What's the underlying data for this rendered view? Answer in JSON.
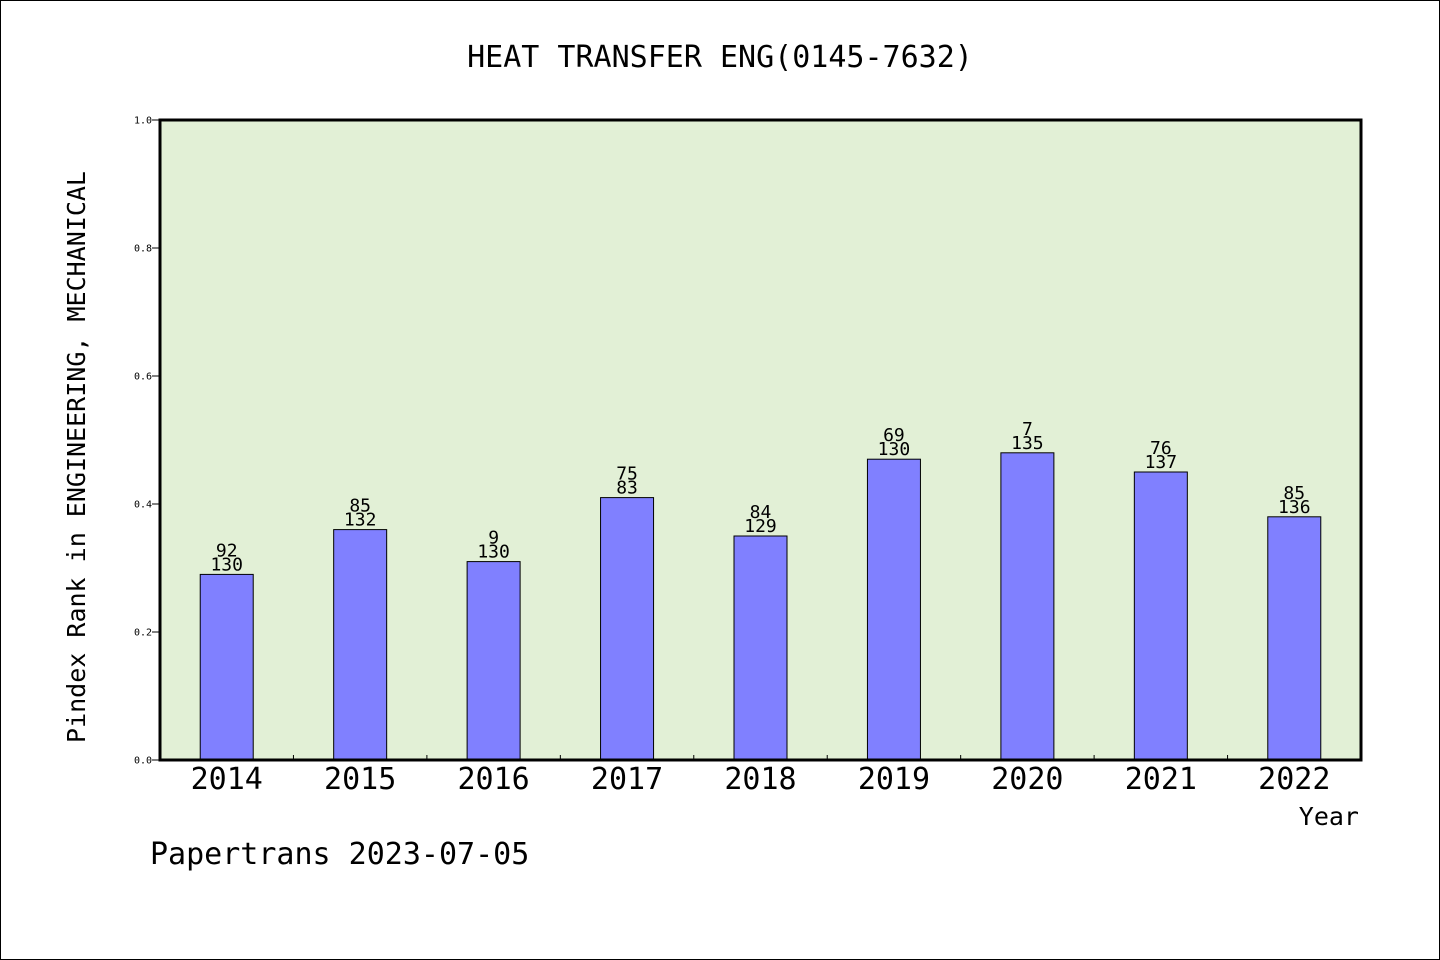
{
  "footer": {
    "text": "Papertrans 2023-07-05"
  },
  "chart_data": {
    "type": "bar",
    "title": "HEAT TRANSFER ENG(0145-7632)",
    "xlabel": "Year",
    "ylabel": "Pindex Rank in ENGINEERING, MECHANICAL",
    "ylim": [
      0,
      1.0
    ],
    "yticks": [
      "0.0",
      "0.2",
      "0.4",
      "0.6",
      "0.8",
      "1.0"
    ],
    "categories": [
      "2014",
      "2015",
      "2016",
      "2017",
      "2018",
      "2019",
      "2020",
      "2021",
      "2022"
    ],
    "values": [
      0.29,
      0.36,
      0.31,
      0.41,
      0.35,
      0.47,
      0.48,
      0.45,
      0.38
    ],
    "rank_labels": [
      "92",
      "85",
      "9",
      "75",
      "84",
      "69",
      "7",
      "76",
      "85"
    ],
    "total_labels": [
      "130",
      "132",
      "130",
      "83",
      "129",
      "130",
      "135",
      "137",
      "136"
    ],
    "grid": false,
    "colors": {
      "plot_background": "#e2f0d6",
      "bar_fill": "#8080ff",
      "bar_stroke": "#000000"
    }
  }
}
